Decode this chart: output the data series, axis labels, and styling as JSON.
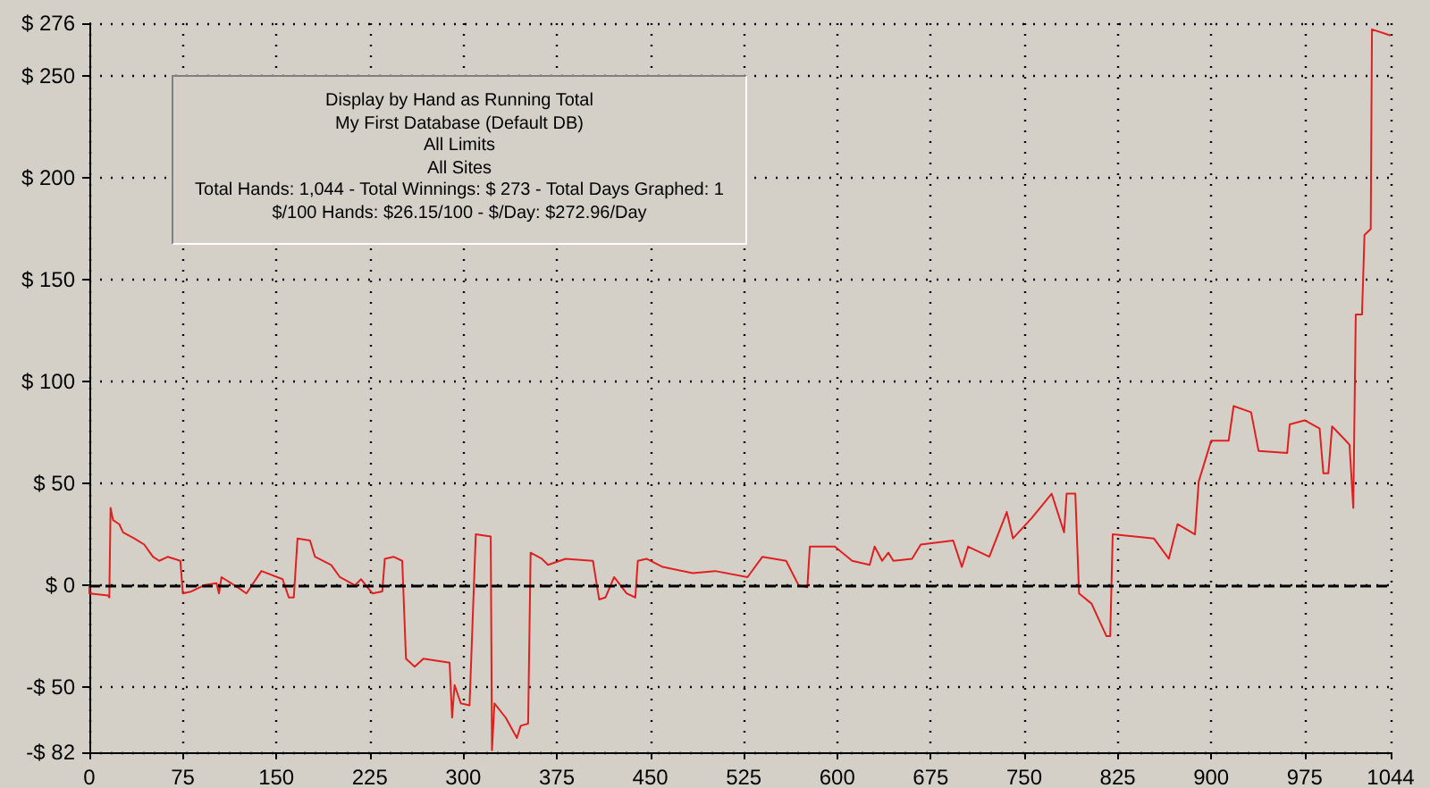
{
  "chart_data": {
    "type": "line",
    "annotations": [
      "Display by Hand as Running Total",
      "My First Database (Default DB)",
      "All Limits",
      "All Sites",
      "Total Hands: 1,044 - Total Winnings: $ 273 - Total Days Graphed: 1",
      "$/100 Hands: $26.15/100 - $/Day: $272.96/Day"
    ],
    "series": [
      {
        "color": "#e02020",
        "x": [
          0,
          0,
          15,
          16,
          17,
          19,
          24,
          27,
          36,
          44,
          51,
          56,
          63,
          73,
          75,
          82,
          92,
          102,
          104,
          106,
          119,
          126,
          138,
          155,
          160,
          164,
          167,
          177,
          181,
          194,
          201,
          213,
          218,
          227,
          235,
          237,
          244,
          251,
          254,
          261,
          268,
          289,
          291,
          293,
          298,
          305,
          310,
          322,
          323,
          325,
          334,
          343,
          346,
          352,
          354,
          363,
          368,
          382,
          404,
          409,
          414,
          421,
          431,
          438,
          440,
          447,
          460,
          484,
          502,
          528,
          540,
          559,
          569,
          576,
          578,
          598,
          612,
          626,
          630,
          636,
          641,
          645,
          660,
          667,
          693,
          700,
          705,
          722,
          736,
          741,
          756,
          772,
          782,
          784,
          791,
          794,
          804,
          816,
          819,
          821,
          854,
          866,
          873,
          887,
          890,
          900,
          914,
          918,
          932,
          938,
          961,
          963,
          975,
          987,
          990,
          994,
          997,
          1008,
          1011,
          1014,
          1016,
          1021,
          1023,
          1028,
          1029,
          1044
        ],
        "values": [
          0,
          -4,
          -5,
          -6,
          38,
          32,
          30,
          26,
          23,
          20,
          14,
          12,
          14,
          12,
          -4,
          -3,
          0,
          1,
          -4,
          4,
          -1,
          -4,
          7,
          3,
          -6,
          -6,
          23,
          22,
          14,
          10,
          4,
          0,
          3,
          -4,
          -3,
          13,
          14,
          12,
          -36,
          -40,
          -36,
          -38,
          -65,
          -49,
          -58,
          -59,
          25,
          24,
          -81,
          -58,
          -65,
          -75,
          -69,
          -68,
          16,
          13,
          10,
          13,
          12,
          -7,
          -6,
          4,
          -4,
          -6,
          12,
          13,
          9,
          6,
          7,
          4,
          14,
          12,
          0,
          -1,
          19,
          19,
          12,
          10,
          19,
          12,
          16,
          12,
          13,
          20,
          22,
          9,
          19,
          14,
          36,
          23,
          33,
          45,
          26,
          45,
          45,
          -4,
          -9,
          -25,
          -25,
          25,
          23,
          13,
          30,
          25,
          51,
          71,
          71,
          88,
          85,
          66,
          65,
          79,
          81,
          77,
          55,
          55,
          78,
          71,
          69,
          38,
          133,
          133,
          172,
          175,
          273,
          270
        ]
      }
    ],
    "xlim": [
      0,
      1044
    ],
    "xticks": [
      0,
      75,
      150,
      225,
      300,
      375,
      450,
      525,
      600,
      675,
      750,
      825,
      900,
      975,
      1044
    ],
    "ylim": [
      -82,
      276
    ],
    "yticks": [
      {
        "value": -82,
        "label": "-$ 82"
      },
      {
        "value": -50,
        "label": "-$ 50"
      },
      {
        "value": 0,
        "label": "$ 0"
      },
      {
        "value": 50,
        "label": "$ 50"
      },
      {
        "value": 100,
        "label": "$ 100"
      },
      {
        "value": 150,
        "label": "$ 150"
      },
      {
        "value": 200,
        "label": "$ 200"
      },
      {
        "value": 250,
        "label": "$ 250"
      },
      {
        "value": 276,
        "label": "$ 276"
      }
    ],
    "grid": true,
    "marker": "none",
    "line_style": "solid",
    "ref_lines": [
      {
        "axis": "y",
        "value": 0,
        "color": "#000000",
        "line_style": "dashed"
      }
    ]
  }
}
